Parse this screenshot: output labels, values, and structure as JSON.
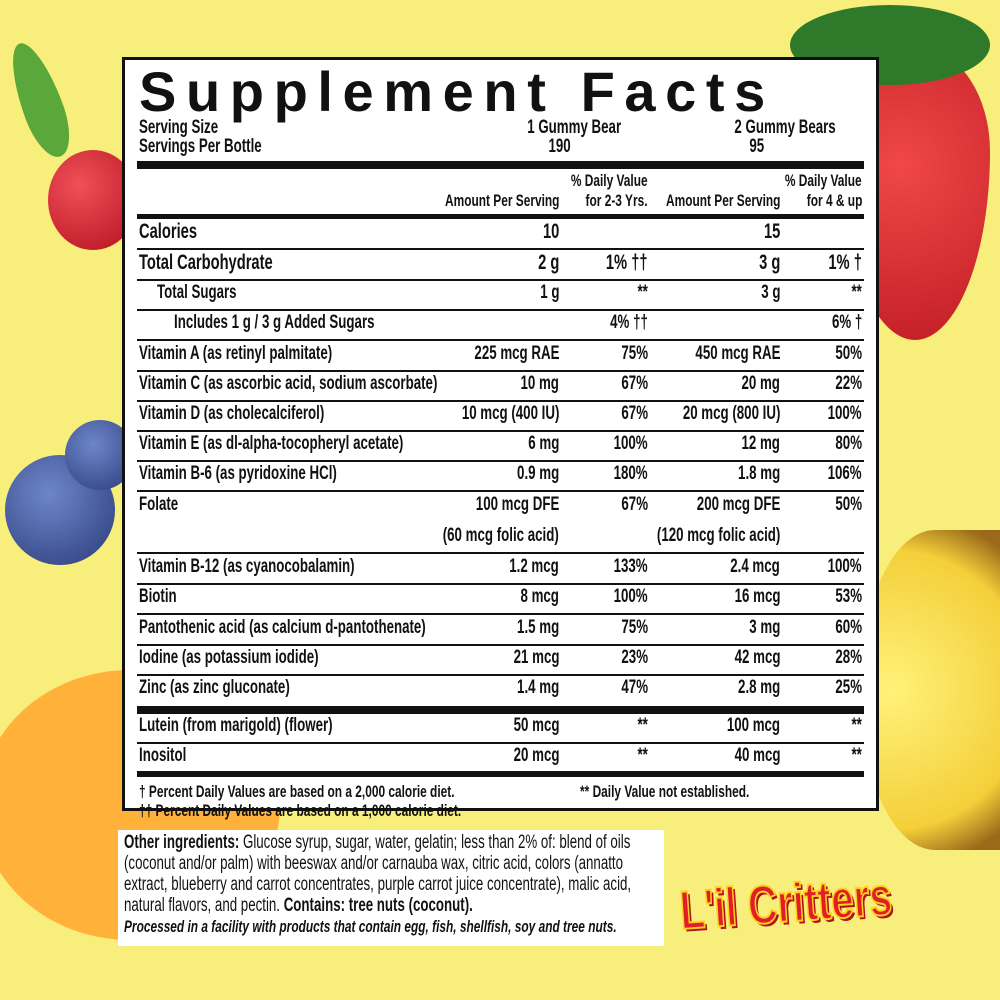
{
  "title": "Supplement Facts",
  "serving": {
    "size_label": "Serving Size",
    "size_1": "1 Gummy Bear",
    "size_2": "2 Gummy Bears",
    "per_label": "Servings Per Bottle",
    "per_1": "190",
    "per_2": "95"
  },
  "headers": {
    "amount_1": "Amount Per Serving",
    "dv_1a": "% Daily Value",
    "dv_1b": "for 2-3 Yrs.",
    "amount_2": "Amount Per Serving",
    "dv_2a": "% Daily Value",
    "dv_2b": "for 4 & up"
  },
  "rows": [
    {
      "name": "Calories",
      "a1": "10",
      "d1": "",
      "a2": "15",
      "d2": "",
      "big": true
    },
    {
      "name": "Total Carbohydrate",
      "a1": "2 g",
      "d1": "1% ††",
      "a2": "3 g",
      "d2": "1% †",
      "big": true
    },
    {
      "name": "Total Sugars",
      "a1": "1 g",
      "d1": "**",
      "a2": "3 g",
      "d2": "**",
      "indent": 1
    },
    {
      "name": "Includes 1 g / 3 g Added Sugars",
      "a1": "",
      "d1": "4% ††",
      "a2": "",
      "d2": "6% †",
      "indent": 2
    },
    {
      "name": "Vitamin A (as retinyl palmitate)",
      "a1": "225 mcg RAE",
      "d1": "75%",
      "a2": "450 mcg RAE",
      "d2": "50%"
    },
    {
      "name": "Vitamin C (as ascorbic acid, sodium ascorbate)",
      "a1": "10 mg",
      "d1": "67%",
      "a2": "20 mg",
      "d2": "22%"
    },
    {
      "name": "Vitamin D (as cholecalciferol)",
      "a1": "10 mcg (400 IU)",
      "d1": "67%",
      "a2": "20 mcg (800 IU)",
      "d2": "100%"
    },
    {
      "name": "Vitamin E (as dl-alpha-tocopheryl acetate)",
      "a1": "6 mg",
      "d1": "100%",
      "a2": "12 mg",
      "d2": "80%"
    },
    {
      "name": "Vitamin B-6 (as pyridoxine HCl)",
      "a1": "0.9 mg",
      "d1": "180%",
      "a2": "1.8 mg",
      "d2": "106%"
    },
    {
      "name": "Folate",
      "a1": "100 mcg DFE",
      "d1": "67%",
      "a2": "200 mcg DFE",
      "d2": "50%",
      "sub1": "(60 mcg folic acid)",
      "sub2": "(120 mcg folic acid)"
    },
    {
      "name": "Vitamin B-12 (as cyanocobalamin)",
      "a1": "1.2 mcg",
      "d1": "133%",
      "a2": "2.4 mcg",
      "d2": "100%"
    },
    {
      "name": "Biotin",
      "a1": "8 mcg",
      "d1": "100%",
      "a2": "16 mcg",
      "d2": "53%"
    },
    {
      "name": "Pantothenic acid (as calcium d-pantothenate)",
      "a1": "1.5 mg",
      "d1": "75%",
      "a2": "3 mg",
      "d2": "60%"
    },
    {
      "name": "Iodine (as potassium iodide)",
      "a1": "21 mcg",
      "d1": "23%",
      "a2": "42 mcg",
      "d2": "28%"
    },
    {
      "name": "Zinc (as zinc gluconate)",
      "a1": "1.4 mg",
      "d1": "47%",
      "a2": "2.8 mg",
      "d2": "25%"
    },
    {
      "name": "Lutein (from marigold) (flower)",
      "a1": "50 mcg",
      "d1": "**",
      "a2": "100 mcg",
      "d2": "**"
    },
    {
      "name": "Inositol",
      "a1": "20 mcg",
      "d1": "**",
      "a2": "40 mcg",
      "d2": "**"
    }
  ],
  "footnotes": {
    "f1": "† Percent Daily Values are based on a 2,000 calorie diet.",
    "f2": "†† Percent Daily Values are based on a 1,000 calorie diet.",
    "f3": "** Daily Value not established."
  },
  "ingredients": {
    "label": "Other ingredients:",
    "text": " Glucose syrup, sugar, water, gelatin; less than 2% of: blend of oils (coconut and/or palm) with beeswax and/or carnauba wax, citric acid, colors (annatto extract, blueberry and carrot concentrates, purple carrot juice concentrate), malic acid, natural flavors, and pectin. ",
    "contains": "Contains: tree nuts (coconut).",
    "facility": "Processed in a facility with products that contain egg, fish, shellfish, soy and tree nuts."
  },
  "brand": "L'il Critters",
  "colors": {
    "background": "#f8ee7c",
    "brand_red": "#e21d2a"
  }
}
